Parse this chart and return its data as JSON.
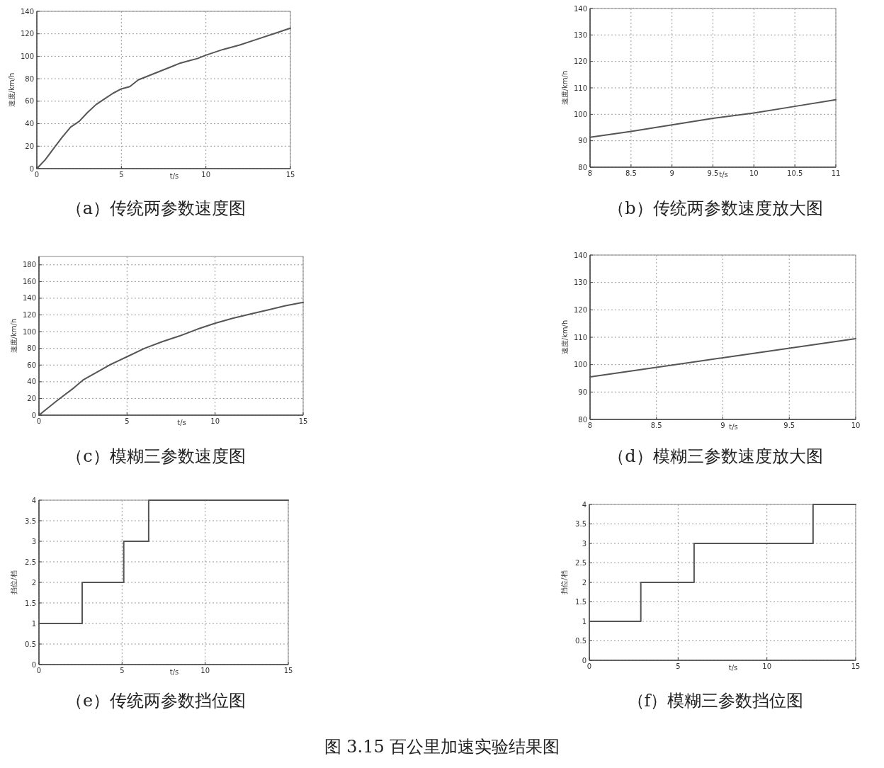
{
  "chart_data": [
    {
      "type": "line",
      "title": "（a）传统两参数速度图",
      "xlabel": "t/s",
      "ylabel": "速度/km/h",
      "x": [
        0,
        0.5,
        1,
        1.5,
        2,
        2.5,
        3,
        3.5,
        4,
        4.5,
        5,
        5.5,
        6,
        6.5,
        7,
        7.5,
        8,
        8.5,
        9,
        9.5,
        10,
        11,
        12,
        13,
        14,
        15
      ],
      "values": [
        0,
        8,
        18,
        28,
        37,
        42,
        50,
        57,
        62,
        67,
        71,
        73,
        79,
        82,
        85,
        88,
        91,
        94,
        96,
        98,
        101,
        106,
        110,
        115,
        120,
        125
      ],
      "color": "#555555",
      "xlim": [
        0,
        15
      ],
      "xticks": [
        0,
        5,
        10,
        15
      ],
      "ylim": [
        0,
        140
      ],
      "yticks": [
        0,
        20,
        40,
        60,
        80,
        100,
        120,
        140
      ],
      "grid": true
    },
    {
      "type": "line",
      "title": "（b）传统两参数速度放大图",
      "xlabel": "t/s",
      "ylabel": "速度/km/h",
      "x": [
        8,
        8.5,
        9,
        9.5,
        10,
        10.5,
        11
      ],
      "values": [
        91.3,
        93.5,
        96,
        98.5,
        100.5,
        103,
        105.5
      ],
      "color": "#555555",
      "xlim": [
        8,
        11
      ],
      "xticks": [
        8,
        8.5,
        9,
        9.5,
        10,
        10.5,
        11
      ],
      "ylim": [
        80,
        140
      ],
      "yticks": [
        80,
        90,
        100,
        110,
        120,
        130,
        140
      ],
      "grid": true
    },
    {
      "type": "line",
      "title": "（c）模糊三参数速度图",
      "xlabel": "t/s",
      "ylabel": "速度/km/h",
      "x": [
        0,
        1,
        2,
        2.5,
        3,
        4,
        5,
        6,
        7,
        8,
        9,
        10,
        11,
        12,
        13,
        14,
        15
      ],
      "values": [
        0,
        17,
        33,
        42,
        48,
        60,
        70,
        80,
        88,
        95,
        103,
        110,
        116,
        121,
        126,
        131,
        135
      ],
      "color": "#555555",
      "xlim": [
        0,
        15
      ],
      "xticks": [
        0,
        5,
        10,
        15
      ],
      "ylim": [
        0,
        190
      ],
      "yticks": [
        0,
        20,
        40,
        60,
        80,
        100,
        120,
        140,
        160,
        180
      ],
      "grid": true
    },
    {
      "type": "line",
      "title": "（d）模糊三参数速度放大图",
      "xlabel": "t/s",
      "ylabel": "速度/km/h",
      "x": [
        8,
        8.5,
        9,
        9.5,
        10
      ],
      "values": [
        95.5,
        99,
        102.5,
        106,
        109.5
      ],
      "color": "#555555",
      "xlim": [
        8,
        10
      ],
      "xticks": [
        8,
        8.5,
        9,
        9.5,
        10
      ],
      "ylim": [
        80,
        140
      ],
      "yticks": [
        80,
        90,
        100,
        110,
        120,
        130,
        140
      ],
      "grid": true
    },
    {
      "type": "step",
      "title": "（e）传统两参数挡位图",
      "xlabel": "t/s",
      "ylabel": "挡位/档",
      "x": [
        0,
        2.6,
        5.1,
        6.6,
        15
      ],
      "values": [
        1,
        2,
        3,
        4,
        4
      ],
      "color": "#555555",
      "xlim": [
        0,
        15
      ],
      "xticks": [
        0,
        5,
        10,
        15
      ],
      "ylim": [
        0,
        4
      ],
      "yticks": [
        0,
        0.5,
        1,
        1.5,
        2,
        2.5,
        3,
        3.5,
        4
      ],
      "grid": true
    },
    {
      "type": "step",
      "title": "（f）模糊三参数挡位图",
      "xlabel": "t/s",
      "ylabel": "挡位/档",
      "x": [
        0,
        2.9,
        5.9,
        12.6,
        15
      ],
      "values": [
        1,
        2,
        3,
        4,
        4
      ],
      "color": "#555555",
      "xlim": [
        0,
        15
      ],
      "xticks": [
        0,
        5,
        10,
        15
      ],
      "ylim": [
        0,
        4
      ],
      "yticks": [
        0,
        0.5,
        1,
        1.5,
        2,
        2.5,
        3,
        3.5,
        4
      ],
      "grid": true
    },
    {
      "type": "other",
      "title": "图 3.15 百公里加速实验结果图"
    }
  ]
}
